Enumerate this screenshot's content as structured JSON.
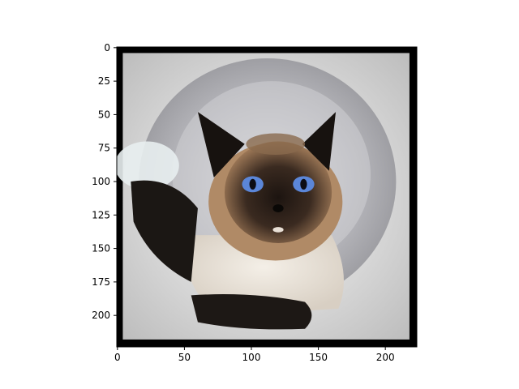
{
  "chart_data": {
    "type": "image",
    "title": "",
    "xlabel": "",
    "ylabel": "",
    "xlim": [
      -0.5,
      223.5
    ],
    "ylim": [
      223.5,
      -0.5
    ],
    "x_ticks": [
      0,
      50,
      100,
      150,
      200
    ],
    "y_ticks": [
      0,
      25,
      50,
      75,
      100,
      125,
      150,
      175,
      200
    ],
    "grid": false,
    "image": {
      "subject": "cat",
      "description_icon": "siamese-cat-in-round-cat-tunnel"
    }
  }
}
